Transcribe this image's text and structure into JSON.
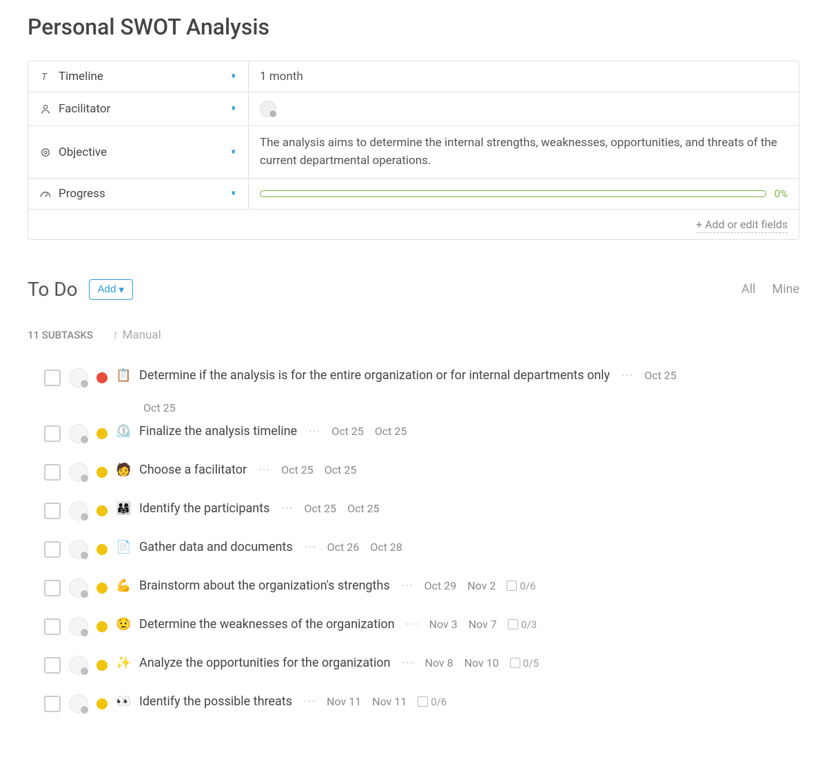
{
  "page": {
    "title": "Personal SWOT Analysis"
  },
  "fields": {
    "items": [
      {
        "key": "timeline",
        "label": "Timeline",
        "value": "1 month",
        "pinned": true
      },
      {
        "key": "facilitator",
        "label": "Facilitator",
        "pinned": true
      },
      {
        "key": "objective",
        "label": "Objective",
        "value": "The analysis aims to determine the internal strengths, weaknesses, opportunities, and threats of the current departmental operations.",
        "pinned": true
      },
      {
        "key": "progress",
        "label": "Progress",
        "percent": "0%",
        "pinned": true
      }
    ],
    "add_or_edit": "+ Add or edit fields"
  },
  "todo": {
    "title": "To Do",
    "add_label": "Add",
    "filters": {
      "all": "All",
      "mine": "Mine"
    },
    "subtasks_count": "11 SUBTASKS",
    "sort_mode": "Manual"
  },
  "tasks": [
    {
      "title": "Determine if the analysis is for the entire organization or for internal departments only",
      "emoji": "📋",
      "priority_color": "#e74c3c",
      "start": "Oct 25",
      "end": "Oct 25",
      "show_end_below": true
    },
    {
      "title": "Finalize the analysis timeline",
      "emoji": "⏲️",
      "priority_color": "#f1c40f",
      "start": "Oct 25",
      "end": "Oct 25"
    },
    {
      "title": "Choose a facilitator",
      "emoji": "🧑",
      "priority_color": "#f1c40f",
      "start": "Oct 25",
      "end": "Oct 25"
    },
    {
      "title": "Identify the participants",
      "emoji": "👨‍👩‍👧",
      "priority_color": "#f1c40f",
      "start": "Oct 25",
      "end": "Oct 25"
    },
    {
      "title": "Gather data and documents",
      "emoji": "📄",
      "priority_color": "#f1c40f",
      "start": "Oct 26",
      "end": "Oct 28"
    },
    {
      "title": "Brainstorm about the organization's strengths",
      "emoji": "💪",
      "priority_color": "#f1c40f",
      "start": "Oct 29",
      "end": "Nov 2",
      "checklist": "0/6"
    },
    {
      "title": "Determine the weaknesses of the organization",
      "emoji": "😟",
      "priority_color": "#f1c40f",
      "start": "Nov 3",
      "end": "Nov 7",
      "checklist": "0/3"
    },
    {
      "title": "Analyze the opportunities for the organization",
      "emoji": "✨",
      "priority_color": "#f1c40f",
      "start": "Nov 8",
      "end": "Nov 10",
      "checklist": "0/5"
    },
    {
      "title": "Identify the possible threats",
      "emoji": "👀",
      "priority_color": "#f1c40f",
      "start": "Nov 11",
      "end": "Nov 11",
      "checklist": "0/6"
    }
  ],
  "colors": {
    "pin": "#2d9cdb",
    "progress_border": "#7cb342",
    "text": "#444444",
    "muted": "#888888",
    "border": "#e0e0e0"
  }
}
